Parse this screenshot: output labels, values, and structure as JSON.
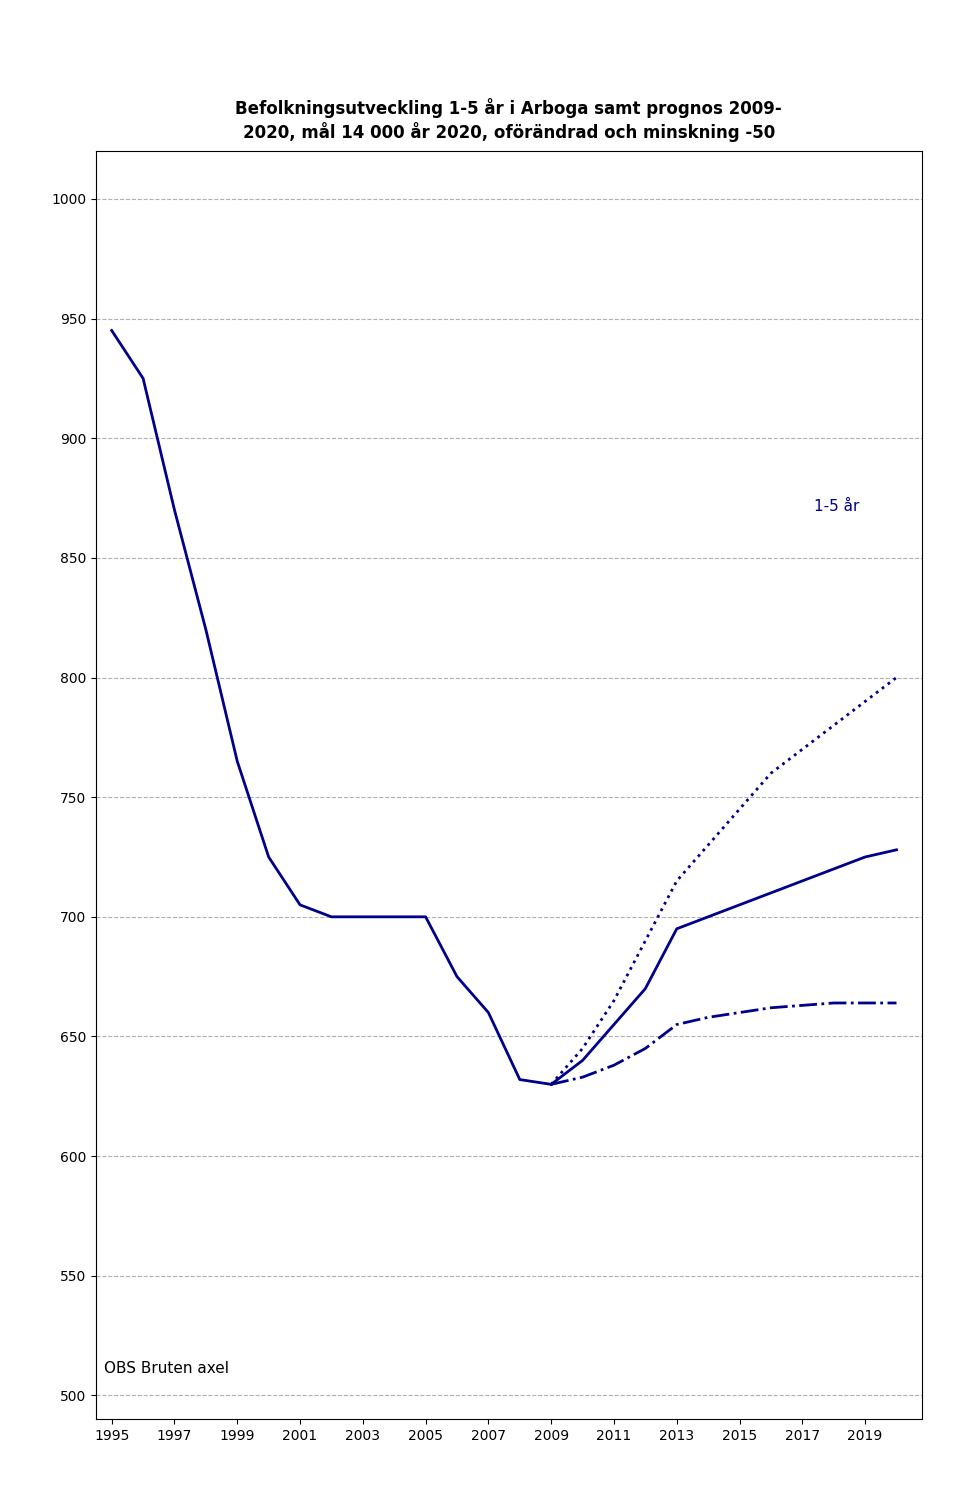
{
  "chart_data": {
    "type": "line",
    "title": "Befolkningsutveckling 1-5 år i Arboga samt prognos 2009-\n2020, mål 14 000 år 2020, oförändrad och minskning -50",
    "x": [
      1995,
      1996,
      1997,
      1998,
      1999,
      2000,
      2001,
      2002,
      2003,
      2004,
      2005,
      2006,
      2007,
      2008,
      2009,
      2010,
      2011,
      2012,
      2013,
      2014,
      2015,
      2016,
      2017,
      2018,
      2019,
      2020
    ],
    "series": [
      {
        "color": "#00008B",
        "line_style": "solid",
        "values": [
          945,
          925,
          870,
          820,
          765,
          725,
          705,
          700,
          700,
          700,
          700,
          675,
          660,
          632,
          630,
          null,
          null,
          null,
          null,
          null,
          null,
          null,
          null,
          null,
          null,
          null
        ]
      },
      {
        "color": "#00008B",
        "line_style": "solid",
        "values": [
          null,
          null,
          null,
          null,
          null,
          null,
          null,
          null,
          null,
          null,
          null,
          null,
          null,
          null,
          630,
          640,
          655,
          670,
          695,
          700,
          705,
          710,
          715,
          720,
          725,
          728
        ]
      },
      {
        "color": "#00008B",
        "line_style": "dotted",
        "values": [
          null,
          null,
          null,
          null,
          null,
          null,
          null,
          null,
          null,
          null,
          null,
          null,
          null,
          null,
          630,
          645,
          665,
          690,
          715,
          730,
          745,
          760,
          770,
          780,
          790,
          800
        ]
      },
      {
        "color": "#00008B",
        "line_style": "dashdot",
        "values": [
          null,
          null,
          null,
          null,
          null,
          null,
          null,
          null,
          null,
          null,
          null,
          null,
          null,
          null,
          630,
          633,
          638,
          645,
          655,
          658,
          660,
          662,
          663,
          664,
          664,
          664
        ]
      }
    ],
    "xlim": [
      1994.5,
      2020.8
    ],
    "xticks": [
      1995,
      1997,
      1999,
      2001,
      2003,
      2005,
      2007,
      2009,
      2011,
      2013,
      2015,
      2017,
      2019
    ],
    "ylim": [
      490,
      1020
    ],
    "yticks": [
      500,
      550,
      600,
      650,
      700,
      750,
      800,
      850,
      900,
      950,
      1000
    ],
    "grid": true,
    "annotations": [
      {
        "text": "OBS Bruten axel"
      },
      {
        "text": "1-5 år",
        "color": "#00008B"
      }
    ]
  }
}
